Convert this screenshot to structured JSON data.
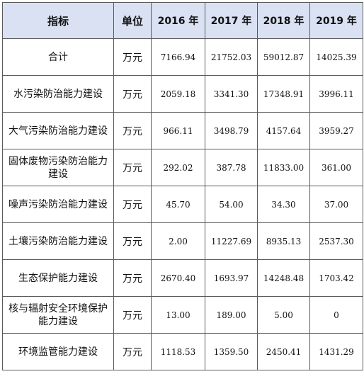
{
  "table": {
    "headers": [
      "指标",
      "单位",
      "2016 年",
      "2017 年",
      "2018 年",
      "2019 年"
    ],
    "rows": [
      {
        "name": "合计",
        "unit": "万元",
        "values": [
          "7166.94",
          "21752.03",
          "59012.87",
          "14025.39"
        ]
      },
      {
        "name": "水污染防治能力建设",
        "unit": "万元",
        "values": [
          "2059.18",
          "3341.30",
          "17348.91",
          "3996.11"
        ]
      },
      {
        "name": "大气污染防治能力建设",
        "unit": "万元",
        "values": [
          "966.11",
          "3498.79",
          "4157.64",
          "3959.27"
        ]
      },
      {
        "name": "固体废物污染防治能力建设",
        "unit": "万元",
        "values": [
          "292.02",
          "387.78",
          "11833.00",
          "361.00"
        ]
      },
      {
        "name": "噪声污染防治能力建设",
        "unit": "万元",
        "values": [
          "45.70",
          "54.00",
          "34.30",
          "37.00"
        ]
      },
      {
        "name": "土壤污染防治能力建设",
        "unit": "万元",
        "values": [
          "2.00",
          "11227.69",
          "8935.13",
          "2537.30"
        ]
      },
      {
        "name": "生态保护能力建设",
        "unit": "万元",
        "values": [
          "2670.40",
          "1693.97",
          "14248.48",
          "1703.42"
        ]
      },
      {
        "name": "核与辐射安全环境保护能力建设",
        "unit": "万元",
        "values": [
          "13.00",
          "189.00",
          "5.00",
          "0"
        ]
      },
      {
        "name": "环境监管能力建设",
        "unit": "万元",
        "values": [
          "1118.53",
          "1359.50",
          "2450.41",
          "1431.29"
        ]
      }
    ]
  }
}
